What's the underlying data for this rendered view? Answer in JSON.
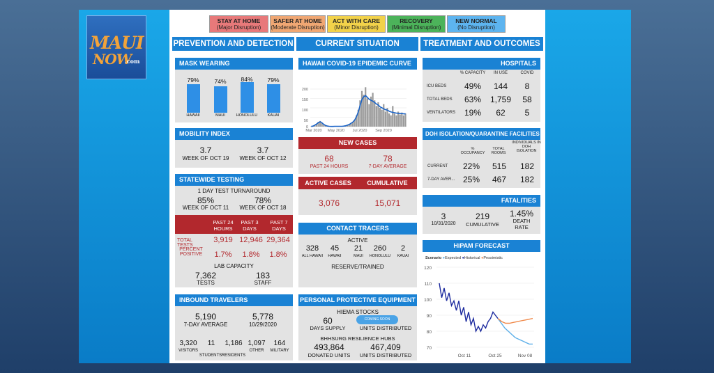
{
  "logo": {
    "line1": "MAUI",
    "line2": "NOW",
    "line3": ".com"
  },
  "legend": [
    {
      "title": "STAY AT HOME",
      "sub": "(Major Disruption)",
      "color": "#e8797a"
    },
    {
      "title": "SAFER AT HOME",
      "sub": "(Moderate Disruption)",
      "color": "#f0a773"
    },
    {
      "title": "ACT WITH CARE",
      "sub": "(Minor Disruption)",
      "color": "#f2d24a"
    },
    {
      "title": "RECOVERY",
      "sub": "(Minimal Disruption)",
      "color": "#4cb35a"
    },
    {
      "title": "NEW NORMAL",
      "sub": "(No Disruption)",
      "color": "#5db4ef"
    }
  ],
  "columns": {
    "left": "PREVENTION AND DETECTION",
    "middle": "CURRENT SITUATION",
    "right": "TREATMENT AND OUTCOMES"
  },
  "mask": {
    "title": "MASK WEARING",
    "items": [
      {
        "pct": "79%",
        "value": 79,
        "label": "HAWAII"
      },
      {
        "pct": "74%",
        "value": 74,
        "label": "MAUI"
      },
      {
        "pct": "84%",
        "value": 84,
        "label": "HONOLULU"
      },
      {
        "pct": "79%",
        "value": 79,
        "label": "KAUAI"
      }
    ]
  },
  "mobility": {
    "title": "MOBILITY INDEX",
    "a_value": "3.7",
    "a_label": "WEEK OF OCT 19",
    "b_value": "3.7",
    "b_label": "WEEK OF OCT 12"
  },
  "testing": {
    "title": "STATEWIDE TESTING",
    "turnaround": "1 DAY TEST TURNAROUND",
    "a_value": "85%",
    "a_label": "WEEK OF OCT 11",
    "b_value": "78%",
    "b_label": "WEEK OF OCT 18",
    "headers": [
      "PAST 24 HOURS",
      "PAST 3 DAYS",
      "PAST 7 DAYS"
    ],
    "total_label": "TOTAL TESTS",
    "totals": [
      "3,919",
      "12,946",
      "29,364"
    ],
    "pos_label": "PERCENT POSITIVE",
    "positives": [
      "1.7%",
      "1.8%",
      "1.8%"
    ],
    "lab_title": "LAB CAPACITY",
    "tests_value": "7,362",
    "tests_label": "TESTS",
    "staff_value": "183",
    "staff_label": "STAFF"
  },
  "inbound": {
    "title": "INBOUND TRAVELERS",
    "a_value": "5,190",
    "a_label": "7-DAY AVERAGE",
    "b_value": "5,778",
    "b_label": "10/29/2020",
    "items": [
      {
        "value": "3,320",
        "label": "VISITORS"
      },
      {
        "value": "11",
        "label": "STUDENTS"
      },
      {
        "value": "1,186",
        "label": "RESIDENTS"
      },
      {
        "value": "1,097",
        "label": "OTHER"
      },
      {
        "value": "164",
        "label": "MILITARY"
      }
    ]
  },
  "curve": {
    "title": "HAWAII COVID-19 EPIDEMIC CURVE",
    "y_ticks": [
      "0",
      "50",
      "100",
      "150",
      "200"
    ],
    "x_ticks": [
      "Mar 2020",
      "May 2020",
      "Jul 2020",
      "Sep 2020"
    ]
  },
  "chart_data": [
    {
      "type": "bar",
      "title": "HAWAII COVID-19 EPIDEMIC CURVE",
      "ylim": [
        0,
        200
      ],
      "x_ticks": [
        "Mar 2020",
        "May 2020",
        "Jul 2020",
        "Sep 2020"
      ],
      "daily_cases_sampled": [
        1,
        3,
        8,
        15,
        25,
        30,
        20,
        10,
        5,
        3,
        2,
        1,
        1,
        2,
        3,
        2,
        1,
        2,
        3,
        5,
        8,
        12,
        18,
        25,
        35,
        60,
        90,
        140,
        190,
        170,
        210,
        150,
        120,
        160,
        180,
        140,
        110,
        130,
        100,
        90,
        120,
        80,
        100,
        70,
        60,
        110,
        70,
        60,
        80,
        65,
        75,
        60,
        70
      ],
      "moving_average_sampled": [
        1,
        3,
        8,
        14,
        22,
        26,
        20,
        12,
        6,
        3,
        2,
        1,
        1,
        2,
        2,
        2,
        2,
        2,
        3,
        5,
        8,
        12,
        18,
        25,
        36,
        55,
        80,
        115,
        145,
        160,
        165,
        155,
        145,
        140,
        135,
        128,
        120,
        115,
        105,
        100,
        95,
        90,
        88,
        82,
        78,
        76,
        74,
        72,
        71,
        70,
        70,
        68,
        68
      ]
    },
    {
      "type": "line",
      "title": "HiPAM FORECAST",
      "ylim": [
        70,
        120
      ],
      "y_ticks": [
        "70",
        "80",
        "90",
        "100",
        "110",
        "120"
      ],
      "x_ticks": [
        "Oct 11",
        "Oct 25",
        "Nov 08"
      ],
      "series": [
        {
          "name": "Historical",
          "values": [
            110,
            101,
            107,
            99,
            104,
            96,
            99,
            93,
            99,
            90,
            95,
            86,
            92,
            84,
            88,
            80,
            83,
            80,
            84,
            82,
            86,
            88,
            92,
            90,
            88
          ]
        },
        {
          "name": "Expected",
          "values": [
            88,
            85,
            82,
            80,
            78,
            76,
            75,
            74,
            73,
            72,
            72
          ]
        },
        {
          "name": "Pessimistic",
          "values": [
            88,
            86,
            85,
            85,
            85.5,
            86,
            86.5,
            87,
            87.5,
            88
          ]
        }
      ]
    }
  ],
  "new_cases": {
    "title": "NEW CASES",
    "a_value": "68",
    "a_label": "PAST 24 HOURS",
    "b_value": "78",
    "b_label": "7-DAY AVERAGE"
  },
  "active": {
    "title_a": "ACTIVE CASES",
    "title_b": "CUMULATIVE",
    "a_value": "3,076",
    "b_value": "15,071"
  },
  "tracers": {
    "title": "CONTACT TRACERS",
    "sub": "ACTIVE",
    "items": [
      {
        "value": "328",
        "label": "ALL HAWAII"
      },
      {
        "value": "45",
        "label": "HAWAII"
      },
      {
        "value": "21",
        "label": "MAUI"
      },
      {
        "value": "260",
        "label": "HONOLULU"
      },
      {
        "value": "2",
        "label": "KAUAI"
      }
    ],
    "reserve": "RESERVE/TRAINED"
  },
  "ppe": {
    "title": "PERSONAL PROTECTIVE EQUIPMENT",
    "hiema": "HIEMA STOCKS",
    "a_value": "60",
    "a_label": "DAYS SUPPLY",
    "coming": "COMING SOON",
    "b_label": "UNITS DISTRIBUTED",
    "hubs": "BHHSURG RESILIENCE HUBS",
    "c_value": "493,864",
    "c_label": "DONATED UNITS",
    "d_value": "467,409",
    "d_label": "UNITS DISTRIBUTED"
  },
  "hospitals": {
    "title": "HOSPITALS",
    "headers": [
      "% CAPACITY",
      "IN USE",
      "COVID"
    ],
    "rows": [
      {
        "label": "ICU BEDS",
        "cap": "49%",
        "use": "144",
        "covid": "8"
      },
      {
        "label": "TOTAL BEDS",
        "cap": "63%",
        "use": "1,759",
        "covid": "58"
      },
      {
        "label": "VENTILATORS",
        "cap": "19%",
        "use": "62",
        "covid": "5"
      }
    ]
  },
  "doh": {
    "title": "DOH ISOLATION/QUARANTINE FACILITIES",
    "headers": [
      "% OCCUPANCY",
      "TOTAL ROOMS",
      "INDIVIDUALS IN DOH ISOLATION"
    ],
    "rows": [
      {
        "label": "CURRENT",
        "occ": "22%",
        "rooms": "515",
        "ind": "182"
      },
      {
        "label": "7-DAY AVER...",
        "occ": "25%",
        "rooms": "467",
        "ind": "182"
      }
    ]
  },
  "fatalities": {
    "title": "FATALITIES",
    "a_value": "3",
    "a_label": "10/31/2020",
    "b_value": "219",
    "b_label": "CUMULATIVE",
    "c_value": "1.45%",
    "c_label": "DEATH RATE"
  },
  "hipam": {
    "title": "HiPAM FORECAST",
    "scenario": "Scenario",
    "series": [
      {
        "name": "Expected",
        "color": "#5aaee8"
      },
      {
        "name": "Historical",
        "color": "#1c2a9e"
      },
      {
        "name": "Pessimistic",
        "color": "#f08a4b"
      }
    ],
    "y_ticks": [
      "70",
      "80",
      "90",
      "100",
      "110",
      "120"
    ],
    "x_ticks": [
      "Oct 11",
      "Oct 25",
      "Nov 08"
    ]
  }
}
